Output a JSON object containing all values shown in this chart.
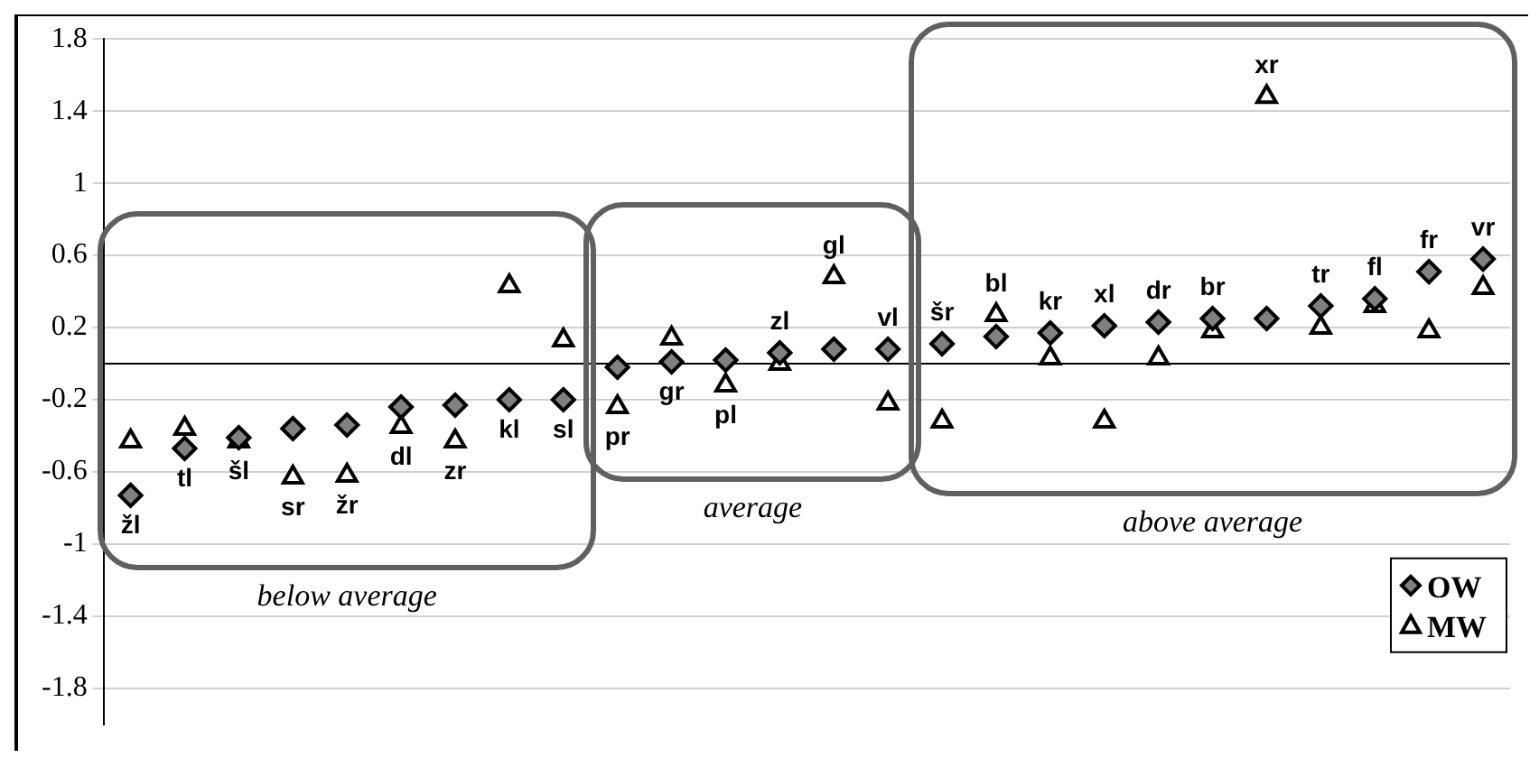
{
  "chart_data": {
    "type": "scatter",
    "categories": [
      "žl",
      "tl",
      "šl",
      "sr",
      "žr",
      "dl",
      "zr",
      "kl",
      "sl",
      "pr",
      "gr",
      "pl",
      "zl",
      "gl",
      "vl",
      "šr",
      "bl",
      "kr",
      "xl",
      "dr",
      "br",
      "xr",
      "tr",
      "fl",
      "fr",
      "vr"
    ],
    "series": [
      {
        "name": "OW",
        "color": "#808080",
        "marker": "diamond",
        "values": [
          -0.73,
          -0.47,
          -0.41,
          -0.36,
          -0.34,
          -0.24,
          -0.23,
          -0.2,
          -0.2,
          -0.02,
          0.01,
          0.02,
          0.06,
          0.08,
          0.08,
          0.11,
          0.15,
          0.17,
          0.21,
          0.23,
          0.25,
          0.25,
          0.32,
          0.36,
          0.51,
          0.58
        ]
      },
      {
        "name": "MW",
        "color": "#ffffff",
        "marker": "triangle",
        "values": [
          -0.43,
          -0.36,
          -0.43,
          -0.63,
          -0.62,
          -0.35,
          -0.43,
          0.43,
          0.13,
          -0.24,
          0.14,
          -0.12,
          0.0,
          0.48,
          -0.22,
          -0.32,
          0.27,
          0.03,
          -0.32,
          0.03,
          0.18,
          1.48,
          0.2,
          0.32,
          0.18,
          0.42
        ]
      }
    ],
    "ylim": [
      -2,
      1.8
    ],
    "yticks": [
      -1.8,
      -1.4,
      -1,
      -0.6,
      -0.2,
      0.2,
      0.6,
      1,
      1.4,
      1.8
    ],
    "grid": "y",
    "legend": "bottom right",
    "tick_labels": "y",
    "ref_lines": [
      {
        "axis": "y",
        "value": 0,
        "color": "#000000"
      }
    ],
    "annotations": [
      "below average",
      "average",
      "above average"
    ]
  }
}
